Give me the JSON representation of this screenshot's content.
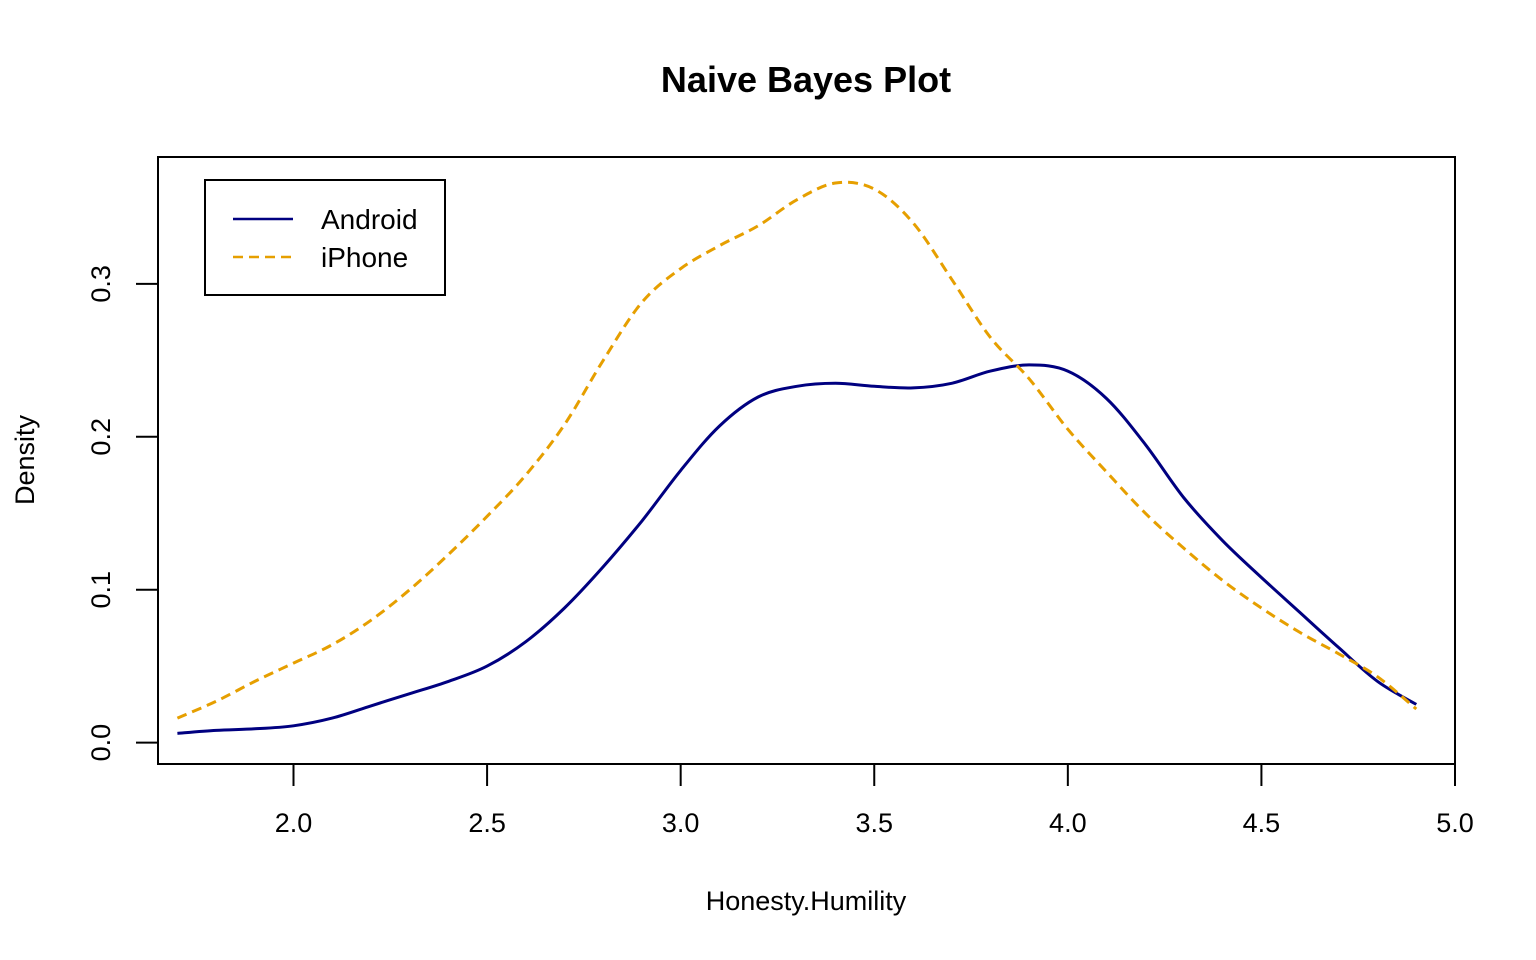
{
  "chart_data": {
    "type": "line",
    "title": "Naive Bayes Plot",
    "xlabel": "Honesty.Humility",
    "ylabel": "Density",
    "xlim": [
      1.65,
      5.0
    ],
    "ylim": [
      -0.014,
      0.383
    ],
    "x_ticks": [
      2.0,
      2.5,
      3.0,
      3.5,
      4.0,
      4.5,
      5.0
    ],
    "x_tick_labels": [
      "2.0",
      "2.5",
      "3.0",
      "3.5",
      "4.0",
      "4.5",
      "5.0"
    ],
    "y_ticks": [
      0.0,
      0.1,
      0.2,
      0.3
    ],
    "y_tick_labels": [
      "0.0",
      "0.1",
      "0.2",
      "0.3"
    ],
    "grid": false,
    "legend": {
      "position": "top-left",
      "entries": [
        "Android",
        "iPhone"
      ]
    },
    "series": [
      {
        "name": "Android",
        "color": "#000080",
        "dash": "solid",
        "points": [
          [
            1.7,
            0.006
          ],
          [
            1.8,
            0.008
          ],
          [
            1.9,
            0.009
          ],
          [
            2.0,
            0.011
          ],
          [
            2.1,
            0.016
          ],
          [
            2.2,
            0.024
          ],
          [
            2.3,
            0.032
          ],
          [
            2.4,
            0.04
          ],
          [
            2.5,
            0.05
          ],
          [
            2.6,
            0.066
          ],
          [
            2.7,
            0.088
          ],
          [
            2.8,
            0.115
          ],
          [
            2.9,
            0.145
          ],
          [
            3.0,
            0.178
          ],
          [
            3.1,
            0.207
          ],
          [
            3.2,
            0.226
          ],
          [
            3.3,
            0.233
          ],
          [
            3.4,
            0.235
          ],
          [
            3.5,
            0.233
          ],
          [
            3.6,
            0.232
          ],
          [
            3.7,
            0.235
          ],
          [
            3.8,
            0.243
          ],
          [
            3.9,
            0.247
          ],
          [
            4.0,
            0.243
          ],
          [
            4.1,
            0.225
          ],
          [
            4.2,
            0.195
          ],
          [
            4.3,
            0.16
          ],
          [
            4.4,
            0.132
          ],
          [
            4.5,
            0.108
          ],
          [
            4.6,
            0.085
          ],
          [
            4.7,
            0.062
          ],
          [
            4.8,
            0.04
          ],
          [
            4.9,
            0.025
          ]
        ]
      },
      {
        "name": "iPhone",
        "color": "#E69F00",
        "dash": "dashed",
        "points": [
          [
            1.7,
            0.016
          ],
          [
            1.8,
            0.027
          ],
          [
            1.9,
            0.04
          ],
          [
            2.0,
            0.052
          ],
          [
            2.1,
            0.064
          ],
          [
            2.2,
            0.08
          ],
          [
            2.3,
            0.1
          ],
          [
            2.4,
            0.123
          ],
          [
            2.5,
            0.148
          ],
          [
            2.6,
            0.175
          ],
          [
            2.7,
            0.208
          ],
          [
            2.8,
            0.25
          ],
          [
            2.9,
            0.288
          ],
          [
            3.0,
            0.31
          ],
          [
            3.1,
            0.325
          ],
          [
            3.2,
            0.338
          ],
          [
            3.3,
            0.355
          ],
          [
            3.4,
            0.366
          ],
          [
            3.5,
            0.362
          ],
          [
            3.6,
            0.34
          ],
          [
            3.7,
            0.303
          ],
          [
            3.8,
            0.265
          ],
          [
            3.9,
            0.238
          ],
          [
            4.0,
            0.205
          ],
          [
            4.1,
            0.177
          ],
          [
            4.2,
            0.15
          ],
          [
            4.3,
            0.127
          ],
          [
            4.4,
            0.106
          ],
          [
            4.5,
            0.088
          ],
          [
            4.6,
            0.072
          ],
          [
            4.7,
            0.058
          ],
          [
            4.8,
            0.043
          ],
          [
            4.9,
            0.022
          ]
        ]
      }
    ]
  }
}
